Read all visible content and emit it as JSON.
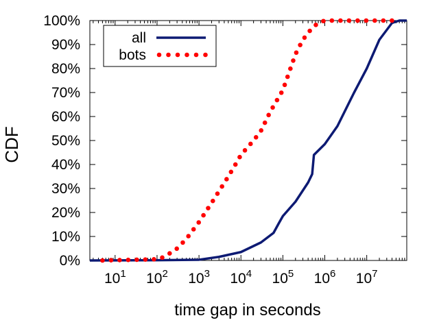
{
  "chart_data": {
    "type": "line",
    "xscale": "log",
    "xlabel": "time gap in seconds",
    "ylabel": "CDF",
    "xlim": [
      2.5,
      90000000
    ],
    "ylim": [
      0,
      100
    ],
    "x_ticks": [
      {
        "value": 10,
        "base": "10",
        "exp": "1"
      },
      {
        "value": 100,
        "base": "10",
        "exp": "2"
      },
      {
        "value": 1000,
        "base": "10",
        "exp": "3"
      },
      {
        "value": 10000,
        "base": "10",
        "exp": "4"
      },
      {
        "value": 100000,
        "base": "10",
        "exp": "5"
      },
      {
        "value": 1000000,
        "base": "10",
        "exp": "6"
      },
      {
        "value": 10000000,
        "base": "10",
        "exp": "7"
      }
    ],
    "y_ticks": [
      {
        "value": 0,
        "label": "0%"
      },
      {
        "value": 10,
        "label": "10%"
      },
      {
        "value": 20,
        "label": "20%"
      },
      {
        "value": 30,
        "label": "30%"
      },
      {
        "value": 40,
        "label": "40%"
      },
      {
        "value": 50,
        "label": "50%"
      },
      {
        "value": 60,
        "label": "60%"
      },
      {
        "value": 70,
        "label": "70%"
      },
      {
        "value": 80,
        "label": "80%"
      },
      {
        "value": 90,
        "label": "90%"
      },
      {
        "value": 100,
        "label": "100%"
      }
    ],
    "grid": false,
    "legend_position": "top-left",
    "series": [
      {
        "name": "all",
        "style": "solid",
        "color": "#0d1a73",
        "points": [
          [
            2.5,
            0
          ],
          [
            100,
            0.1
          ],
          [
            1000,
            0.3
          ],
          [
            3000,
            1.5
          ],
          [
            10000,
            3.5
          ],
          [
            30000,
            7.5
          ],
          [
            60000,
            11.5
          ],
          [
            80000,
            15.5
          ],
          [
            100000,
            18.5
          ],
          [
            200000,
            24.5
          ],
          [
            400000,
            32.5
          ],
          [
            500000,
            36
          ],
          [
            550000,
            44
          ],
          [
            1000000,
            48.5
          ],
          [
            2000000,
            56
          ],
          [
            5000000,
            70
          ],
          [
            10000000,
            80
          ],
          [
            20000000,
            92
          ],
          [
            40000000,
            99
          ],
          [
            60000000,
            100
          ],
          [
            90000000,
            100
          ]
        ]
      },
      {
        "name": "bots",
        "style": "dotted",
        "color": "#ff0000",
        "points": [
          [
            5,
            0
          ],
          [
            100,
            0.5
          ],
          [
            150,
            1.5
          ],
          [
            300,
            5
          ],
          [
            500,
            9
          ],
          [
            1000,
            16
          ],
          [
            2000,
            24
          ],
          [
            5000,
            35
          ],
          [
            8000,
            41
          ],
          [
            10000,
            44
          ],
          [
            20000,
            50
          ],
          [
            30000,
            54
          ],
          [
            50000,
            62
          ],
          [
            100000,
            71
          ],
          [
            200000,
            86
          ],
          [
            300000,
            92
          ],
          [
            500000,
            97
          ],
          [
            700000,
            99
          ],
          [
            1000000,
            100
          ],
          [
            2000000,
            100
          ],
          [
            50000000,
            100
          ]
        ]
      }
    ]
  }
}
